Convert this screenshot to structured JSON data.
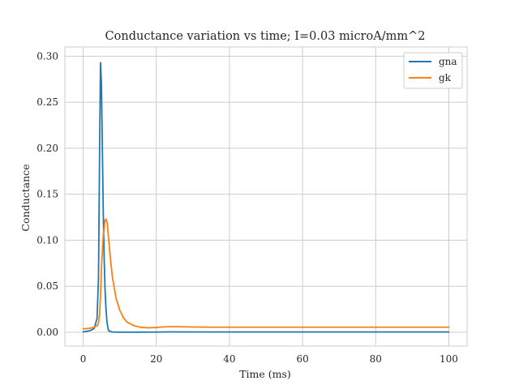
{
  "chart_data": {
    "type": "line",
    "title": "Conductance variation vs time; I=0.03 microA/mm^2",
    "xlabel": "Time (ms)",
    "ylabel": "Conductance",
    "xlim": [
      -5,
      105
    ],
    "ylim": [
      -0.015,
      0.31
    ],
    "xticks": [
      0,
      20,
      40,
      60,
      80,
      100
    ],
    "xtick_labels": [
      "0",
      "20",
      "40",
      "60",
      "80",
      "100"
    ],
    "yticks": [
      0.0,
      0.05,
      0.1,
      0.15,
      0.2,
      0.25,
      0.3
    ],
    "ytick_labels": [
      "0.00",
      "0.05",
      "0.10",
      "0.15",
      "0.20",
      "0.25",
      "0.30"
    ],
    "grid": true,
    "legend_position": "top-right",
    "series": [
      {
        "name": "gna",
        "color": "#1f77b4",
        "x": [
          0,
          1,
          2,
          3,
          3.8,
          4.2,
          4.5,
          4.75,
          5.0,
          5.25,
          5.5,
          5.75,
          6.0,
          6.25,
          6.5,
          6.75,
          7.0,
          8,
          10,
          15,
          20,
          24,
          30,
          40,
          60,
          80,
          100
        ],
        "y": [
          0.0005,
          0.001,
          0.002,
          0.004,
          0.015,
          0.06,
          0.2,
          0.293,
          0.27,
          0.2,
          0.13,
          0.08,
          0.045,
          0.025,
          0.012,
          0.005,
          0.0015,
          0.0003,
          0.0001,
          0.0001,
          0.0002,
          0.0004,
          0.0003,
          0.0003,
          0.0003,
          0.0003,
          0.0003
        ]
      },
      {
        "name": "gk",
        "color": "#ff7f0e",
        "x": [
          0,
          1,
          2,
          3,
          3.8,
          4.2,
          4.5,
          4.75,
          5.0,
          5.5,
          6.0,
          6.3,
          6.6,
          7.0,
          7.5,
          8,
          9,
          10,
          11,
          12,
          14,
          16,
          18,
          20,
          22,
          24,
          26,
          30,
          35,
          40,
          60,
          80,
          100
        ],
        "y": [
          0.0037,
          0.004,
          0.0045,
          0.0055,
          0.007,
          0.01,
          0.02,
          0.04,
          0.07,
          0.105,
          0.122,
          0.123,
          0.118,
          0.1,
          0.078,
          0.06,
          0.037,
          0.024,
          0.016,
          0.011,
          0.007,
          0.0052,
          0.0048,
          0.0052,
          0.0058,
          0.006,
          0.006,
          0.0057,
          0.0055,
          0.0055,
          0.0055,
          0.0055,
          0.0055
        ]
      }
    ]
  }
}
